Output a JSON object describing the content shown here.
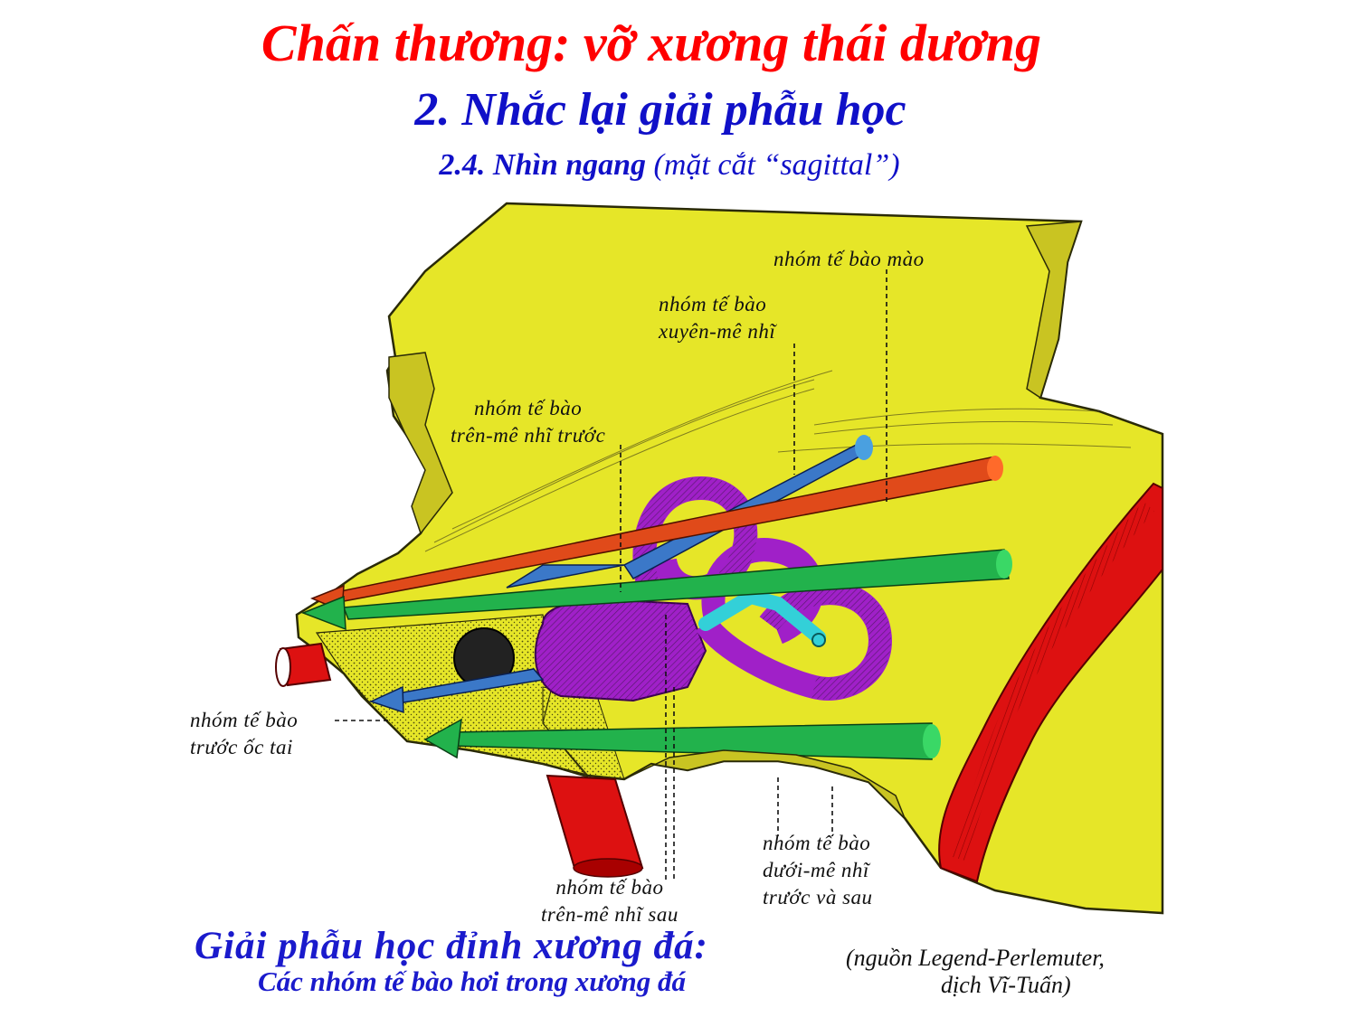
{
  "header": {
    "title": "Chấn thương: vỡ xương thái dương",
    "section": "2. Nhắc lại giải phẫu học",
    "subsection_bold": "2.4. Nhìn ngang",
    "subsection_rest": " (mặt cắt “sagittal”)"
  },
  "labels": {
    "crest_cells": "nhóm tế bào mào",
    "translabyrinth_1": "nhóm tế bào",
    "translabyrinth_2": "xuyên-mê nhĩ",
    "supra_anterior_1": "nhóm tế bào",
    "supra_anterior_2": "trên-mê nhĩ trước",
    "precochlear_1": "nhóm tế bào",
    "precochlear_2": "trước ốc tai",
    "supra_posterior_1": "nhóm tế bào",
    "supra_posterior_2": "trên-mê nhĩ sau",
    "infra_1": "nhóm tế bào",
    "infra_2": "dưới-mê nhĩ",
    "infra_3": "trước và sau"
  },
  "caption": {
    "line1": "Giải phẫu học đỉnh xương đá:",
    "line2": "Các nhóm tế bào hơi  trong xương đá"
  },
  "source": {
    "line1": "(nguồn Legend-Perlemuter,",
    "line2": "dịch Vĩ-Tuấn)"
  },
  "colors": {
    "title": "#ff0000",
    "heading": "#1010c8",
    "bone": "#e6e628",
    "vessel": "#dd1111",
    "labyrinth": "#a020c8",
    "tract_blue": "#3b78c8",
    "tract_red": "#e04a1a",
    "tract_green": "#22b24c"
  }
}
